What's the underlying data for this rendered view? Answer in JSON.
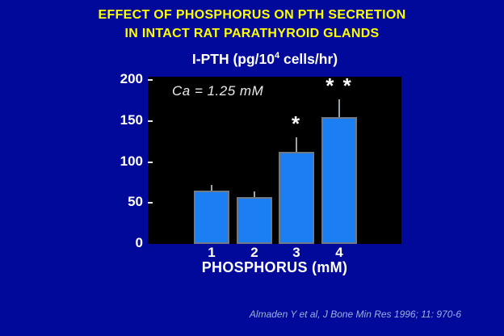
{
  "slide": {
    "title_line1": "EFFECT OF PHOSPHORUS ON PTH SECRETION",
    "title_line2": "IN INTACT RAT PARATHYROID GLANDS",
    "citation": "Almaden Y et al, J Bone Min Res 1996; 11: 970-6"
  },
  "chart_data": {
    "type": "bar",
    "title": "I-PTH (pg/10⁴ cells/hr)",
    "title_parts": {
      "prefix": "I-PTH (pg/10",
      "sup": "4",
      "suffix": " cells/hr)"
    },
    "annotation": "Ca = 1.25 mM",
    "categories": [
      "1",
      "2",
      "3",
      "4"
    ],
    "values": [
      65,
      57,
      112,
      155
    ],
    "errors_plus": [
      7,
      7,
      18,
      22
    ],
    "significance": [
      "",
      "",
      "*",
      "* *"
    ],
    "xlabel": "PHOSPHORUS (mM)",
    "ylabel": "",
    "yticks": [
      0,
      50,
      100,
      150,
      200
    ],
    "ylim": [
      0,
      200
    ],
    "grid": false,
    "legend": false,
    "plot_background": "#000000",
    "bar_color": "#1b7ef2",
    "bar_border_color": "#6f7a85",
    "error_bar_color": "#9aa2aa"
  },
  "colors": {
    "slide_background": "#00099a",
    "title_text": "#ffff00",
    "axis_text": "#ffffff",
    "citation_text": "#9fafdf"
  }
}
